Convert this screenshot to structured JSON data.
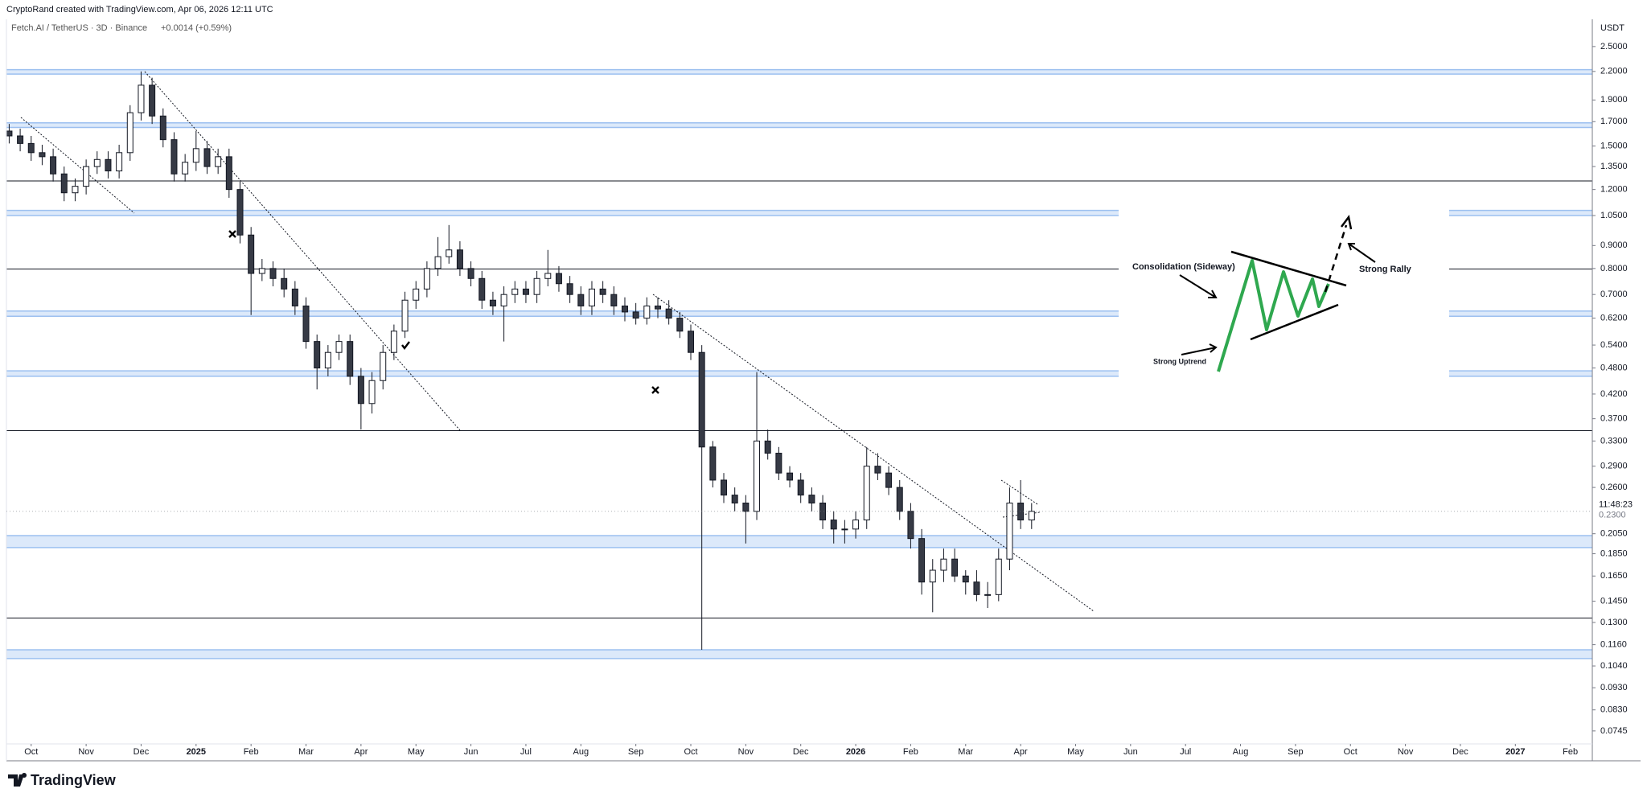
{
  "chart_data": {
    "type": "candlestick",
    "credit": "CryptoRand created with TradingView.com, Apr 06, 2026 12:11 UTC",
    "title": "Fetch.AI / TetherUS · 3D · Binance",
    "change": "+0.0014 (+0.59%)",
    "currency": "USDT",
    "logo": "TradingView",
    "countdown": "11:48:23",
    "last_price": {
      "value": 0.23,
      "label": "0.2300"
    },
    "log_scale": true,
    "up_color": "#ffffff",
    "down_color": "#363a45",
    "border_color": "#131722",
    "zone_color": "#9cc0f0",
    "line_color": "#131722",
    "annotations": [
      "Consolidation (Sideway)",
      "Strong Uptrend",
      "Strong Rally"
    ],
    "xlim": [
      0.55,
      29.4
    ],
    "xticks": [
      {
        "value": 1,
        "label": "Oct"
      },
      {
        "value": 2,
        "label": "Nov"
      },
      {
        "value": 3,
        "label": "Dec"
      },
      {
        "value": 4,
        "label": "2025"
      },
      {
        "value": 5,
        "label": "Feb"
      },
      {
        "value": 6,
        "label": "Mar"
      },
      {
        "value": 7,
        "label": "Apr"
      },
      {
        "value": 8,
        "label": "May"
      },
      {
        "value": 9,
        "label": "Jun"
      },
      {
        "value": 10,
        "label": "Jul"
      },
      {
        "value": 11,
        "label": "Aug"
      },
      {
        "value": 12,
        "label": "Sep"
      },
      {
        "value": 13,
        "label": "Oct"
      },
      {
        "value": 14,
        "label": "Nov"
      },
      {
        "value": 15,
        "label": "Dec"
      },
      {
        "value": 16,
        "label": "2026"
      },
      {
        "value": 17,
        "label": "Feb"
      },
      {
        "value": 18,
        "label": "Mar"
      },
      {
        "value": 19,
        "label": "Apr"
      },
      {
        "value": 20,
        "label": "May"
      },
      {
        "value": 21,
        "label": "Jun"
      },
      {
        "value": 22,
        "label": "Jul"
      },
      {
        "value": 23,
        "label": "Aug"
      },
      {
        "value": 24,
        "label": "Sep"
      },
      {
        "value": 25,
        "label": "Oct"
      },
      {
        "value": 26,
        "label": "Nov"
      },
      {
        "value": 27,
        "label": "Dec"
      },
      {
        "value": 28,
        "label": "2027"
      },
      {
        "value": 29,
        "label": "Feb"
      }
    ],
    "ylim": [
      0.0697,
      2.875
    ],
    "yticks": [
      {
        "value": 2.5,
        "label": "2.5000"
      },
      {
        "value": 2.2,
        "label": "2.2000"
      },
      {
        "value": 1.9,
        "label": "1.9000"
      },
      {
        "value": 1.7,
        "label": "1.7000"
      },
      {
        "value": 1.5,
        "label": "1.5000"
      },
      {
        "value": 1.35,
        "label": "1.3500"
      },
      {
        "value": 1.2,
        "label": "1.2000"
      },
      {
        "value": 1.05,
        "label": "1.0500"
      },
      {
        "value": 0.9,
        "label": "0.9000"
      },
      {
        "value": 0.8,
        "label": "0.8000"
      },
      {
        "value": 0.7,
        "label": "0.7000"
      },
      {
        "value": 0.62,
        "label": "0.6200"
      },
      {
        "value": 0.54,
        "label": "0.5400"
      },
      {
        "value": 0.48,
        "label": "0.4800"
      },
      {
        "value": 0.42,
        "label": "0.4200"
      },
      {
        "value": 0.37,
        "label": "0.3700"
      },
      {
        "value": 0.33,
        "label": "0.3300"
      },
      {
        "value": 0.29,
        "label": "0.2900"
      },
      {
        "value": 0.26,
        "label": "0.2600"
      },
      {
        "value": 0.205,
        "label": "0.2050"
      },
      {
        "value": 0.185,
        "label": "0.1850"
      },
      {
        "value": 0.165,
        "label": "0.1650"
      },
      {
        "value": 0.145,
        "label": "0.1450"
      },
      {
        "value": 0.13,
        "label": "0.1300"
      },
      {
        "value": 0.116,
        "label": "0.1160"
      },
      {
        "value": 0.104,
        "label": "0.1040"
      },
      {
        "value": 0.093,
        "label": "0.0930"
      },
      {
        "value": 0.083,
        "label": "0.0830"
      },
      {
        "value": 0.0745,
        "label": "0.0745"
      }
    ],
    "zones": [
      [
        2.17,
        2.22
      ],
      [
        1.65,
        1.69
      ],
      [
        1.05,
        1.078
      ],
      [
        0.626,
        0.643
      ],
      [
        0.46,
        0.473
      ],
      [
        0.191,
        0.203
      ],
      [
        0.108,
        0.113
      ]
    ],
    "lines": [
      1.254,
      0.798,
      0.348,
      0.133
    ],
    "x": [
      0.6,
      0.8,
      1.0,
      1.2,
      1.4,
      1.6,
      1.8,
      2.0,
      2.2,
      2.4,
      2.6,
      2.8,
      3.0,
      3.2,
      3.4,
      3.6,
      3.8,
      4.0,
      4.2,
      4.4,
      4.6,
      4.8,
      5.0,
      5.2,
      5.4,
      5.6,
      5.8,
      6.0,
      6.2,
      6.4,
      6.6,
      6.8,
      7.0,
      7.2,
      7.4,
      7.6,
      7.8,
      8.0,
      8.2,
      8.4,
      8.6,
      8.8,
      9.0,
      9.2,
      9.4,
      9.6,
      9.8,
      10.0,
      10.2,
      10.4,
      10.6,
      10.8,
      11.0,
      11.2,
      11.4,
      11.6,
      11.8,
      12.0,
      12.2,
      12.4,
      12.6,
      12.8,
      13.0,
      13.2,
      13.4,
      13.6,
      13.8,
      14.0,
      14.2,
      14.4,
      14.6,
      14.8,
      15.0,
      15.2,
      15.4,
      15.6,
      15.8,
      16.0,
      16.2,
      16.4,
      16.6,
      16.8,
      17.0,
      17.2,
      17.4,
      17.6,
      17.8,
      18.0,
      18.2,
      18.4,
      18.6,
      18.8,
      19.0,
      19.2
    ],
    "open": [
      1.62,
      1.58,
      1.52,
      1.45,
      1.42,
      1.3,
      1.18,
      1.22,
      1.35,
      1.4,
      1.32,
      1.45,
      1.78,
      2.05,
      1.75,
      1.55,
      1.3,
      1.38,
      1.48,
      1.35,
      1.42,
      1.2,
      0.95,
      0.78,
      0.8,
      0.76,
      0.72,
      0.66,
      0.55,
      0.48,
      0.52,
      0.55,
      0.46,
      0.4,
      0.45,
      0.52,
      0.58,
      0.68,
      0.72,
      0.8,
      0.85,
      0.88,
      0.8,
      0.76,
      0.68,
      0.66,
      0.7,
      0.72,
      0.7,
      0.76,
      0.78,
      0.74,
      0.7,
      0.66,
      0.72,
      0.7,
      0.66,
      0.64,
      0.62,
      0.66,
      0.65,
      0.62,
      0.58,
      0.52,
      0.32,
      0.27,
      0.25,
      0.24,
      0.23,
      0.33,
      0.31,
      0.28,
      0.27,
      0.25,
      0.24,
      0.22,
      0.21,
      0.21,
      0.22,
      0.29,
      0.28,
      0.26,
      0.23,
      0.2,
      0.16,
      0.17,
      0.18,
      0.165,
      0.16,
      0.15,
      0.15,
      0.18,
      0.24,
      0.22
    ],
    "high": [
      1.68,
      1.64,
      1.58,
      1.51,
      1.48,
      1.35,
      1.27,
      1.4,
      1.46,
      1.46,
      1.51,
      1.85,
      2.2,
      2.13,
      1.82,
      1.61,
      1.44,
      1.62,
      1.54,
      1.48,
      1.48,
      1.25,
      0.99,
      0.84,
      0.83,
      0.8,
      0.75,
      0.69,
      0.57,
      0.54,
      0.57,
      0.57,
      0.48,
      0.47,
      0.54,
      0.6,
      0.71,
      0.75,
      0.83,
      0.94,
      1.0,
      0.92,
      0.83,
      0.79,
      0.71,
      0.73,
      0.75,
      0.75,
      0.79,
      0.88,
      0.81,
      0.77,
      0.73,
      0.75,
      0.75,
      0.73,
      0.69,
      0.67,
      0.69,
      0.69,
      0.68,
      0.64,
      0.6,
      0.54,
      0.33,
      0.28,
      0.26,
      0.25,
      0.47,
      0.35,
      0.32,
      0.29,
      0.28,
      0.26,
      0.25,
      0.23,
      0.22,
      0.23,
      0.32,
      0.31,
      0.29,
      0.27,
      0.24,
      0.21,
      0.18,
      0.19,
      0.19,
      0.17,
      0.17,
      0.16,
      0.19,
      0.26,
      0.27,
      0.24
    ],
    "low": [
      1.52,
      1.46,
      1.39,
      1.36,
      1.25,
      1.13,
      1.13,
      1.17,
      1.3,
      1.27,
      1.27,
      1.39,
      1.71,
      1.68,
      1.49,
      1.25,
      1.25,
      1.32,
      1.3,
      1.3,
      1.15,
      0.91,
      0.63,
      0.75,
      0.73,
      0.69,
      0.63,
      0.53,
      0.43,
      0.46,
      0.5,
      0.44,
      0.35,
      0.38,
      0.43,
      0.5,
      0.56,
      0.65,
      0.69,
      0.77,
      0.82,
      0.77,
      0.73,
      0.65,
      0.63,
      0.55,
      0.67,
      0.67,
      0.67,
      0.73,
      0.71,
      0.67,
      0.63,
      0.63,
      0.67,
      0.63,
      0.61,
      0.6,
      0.6,
      0.62,
      0.6,
      0.56,
      0.5,
      0.113,
      0.26,
      0.24,
      0.23,
      0.195,
      0.22,
      0.3,
      0.27,
      0.26,
      0.24,
      0.23,
      0.21,
      0.195,
      0.195,
      0.2,
      0.21,
      0.27,
      0.25,
      0.22,
      0.19,
      0.15,
      0.137,
      0.16,
      0.16,
      0.15,
      0.145,
      0.14,
      0.145,
      0.17,
      0.21,
      0.21
    ],
    "close": [
      1.58,
      1.52,
      1.45,
      1.42,
      1.3,
      1.18,
      1.22,
      1.35,
      1.4,
      1.32,
      1.45,
      1.78,
      2.05,
      1.75,
      1.55,
      1.3,
      1.38,
      1.48,
      1.35,
      1.42,
      1.2,
      0.95,
      0.78,
      0.8,
      0.76,
      0.72,
      0.66,
      0.55,
      0.48,
      0.52,
      0.55,
      0.46,
      0.4,
      0.45,
      0.52,
      0.58,
      0.68,
      0.72,
      0.8,
      0.85,
      0.88,
      0.8,
      0.76,
      0.68,
      0.66,
      0.7,
      0.72,
      0.7,
      0.76,
      0.78,
      0.74,
      0.7,
      0.66,
      0.72,
      0.7,
      0.66,
      0.64,
      0.62,
      0.66,
      0.65,
      0.62,
      0.58,
      0.52,
      0.32,
      0.27,
      0.25,
      0.24,
      0.23,
      0.33,
      0.31,
      0.28,
      0.27,
      0.25,
      0.24,
      0.22,
      0.21,
      0.21,
      0.22,
      0.29,
      0.28,
      0.26,
      0.23,
      0.2,
      0.16,
      0.17,
      0.18,
      0.165,
      0.16,
      0.15,
      0.15,
      0.18,
      0.24,
      0.22,
      0.23
    ]
  }
}
